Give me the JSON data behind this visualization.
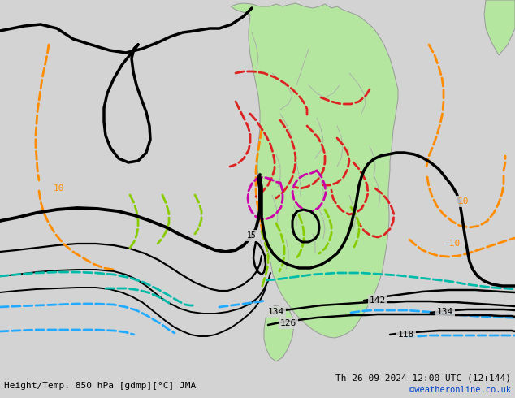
{
  "title_left": "Height/Temp. 850 hPa [gdmp][°C] JMA",
  "title_right": "Th 26-09-2024 12:00 UTC (12+144)",
  "watermark": "©weatheronline.co.uk",
  "bg_color": "#d3d3d3",
  "land_color": "#b5e6a0",
  "border_color": "#999999",
  "fig_width": 6.34,
  "fig_height": 4.9,
  "dpi": 100
}
